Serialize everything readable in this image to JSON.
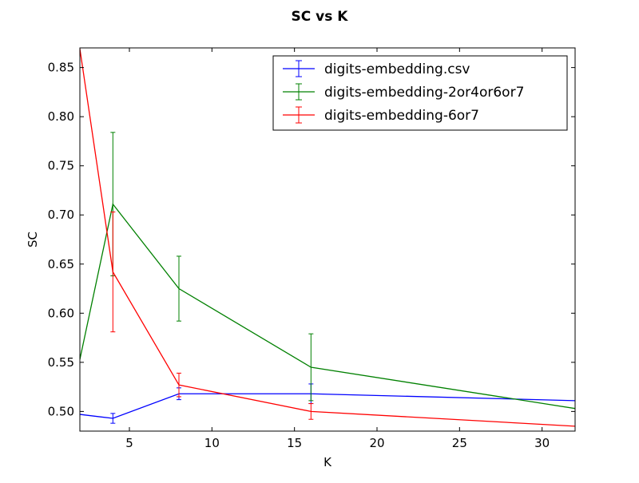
{
  "chart_data": {
    "type": "line",
    "title": "SC vs K",
    "xlabel": "K",
    "ylabel": "SC",
    "xlim": [
      2,
      32
    ],
    "ylim": [
      0.48,
      0.87
    ],
    "xticks": [
      5,
      10,
      15,
      20,
      25,
      30
    ],
    "yticks": [
      0.5,
      0.55,
      0.6,
      0.65,
      0.7,
      0.75,
      0.8,
      0.85
    ],
    "legend_position": "top-right",
    "grid": false,
    "series": [
      {
        "name": "digits-embedding.csv",
        "color": "#0000ff",
        "x": [
          2,
          4,
          8,
          16,
          32
        ],
        "y": [
          0.497,
          0.493,
          0.518,
          0.518,
          0.511
        ],
        "yerr": [
          0.0,
          0.005,
          0.006,
          0.01,
          0.0
        ]
      },
      {
        "name": "digits-embedding-2or4or6or7",
        "color": "#008000",
        "x": [
          2,
          4,
          8,
          16,
          32
        ],
        "y": [
          0.553,
          0.711,
          0.625,
          0.545,
          0.503
        ],
        "yerr": [
          0.0,
          0.073,
          0.033,
          0.034,
          0.0
        ]
      },
      {
        "name": "digits-embedding-6or7",
        "color": "#ff0000",
        "x": [
          2,
          4,
          8,
          16,
          32
        ],
        "y": [
          0.869,
          0.642,
          0.527,
          0.5,
          0.485
        ],
        "yerr": [
          0.0,
          0.061,
          0.012,
          0.008,
          0.0
        ]
      }
    ]
  }
}
